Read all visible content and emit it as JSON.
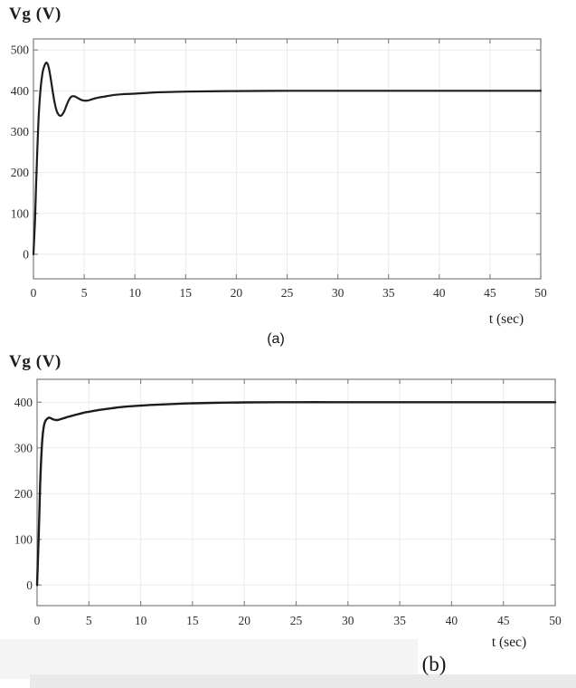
{
  "figure": {
    "background": "#ffffff",
    "artifact_bands": [
      {
        "color": "#f4f4f4"
      },
      {
        "color": "#e9e9e9"
      }
    ]
  },
  "chart_data": [
    {
      "type": "line",
      "title": "Vg (V)",
      "xlabel": "t (sec)",
      "caption": "(a)",
      "xlim": [
        0,
        50
      ],
      "ylim": [
        -60,
        527
      ],
      "xticks": [
        0,
        5,
        10,
        15,
        20,
        25,
        30,
        35,
        40,
        45,
        50
      ],
      "yticks": [
        0,
        100,
        200,
        300,
        400,
        500
      ],
      "grid": true,
      "grid_color": "#ebebeb",
      "frame_color": "#7d7d7d",
      "tick_text_color": "#2e2e2e",
      "series": [
        {
          "name": "Vg",
          "color": "#1c1c1c",
          "x": [
            0,
            0.15,
            0.3,
            0.5,
            0.7,
            0.9,
            1.1,
            1.3,
            1.5,
            1.7,
            1.9,
            2.1,
            2.3,
            2.5,
            2.7,
            2.9,
            3.1,
            3.3,
            3.5,
            3.7,
            3.9,
            4.1,
            4.4,
            4.7,
            5.0,
            5.3,
            5.6,
            6.0,
            6.5,
            7.0,
            8.0,
            9.0,
            10,
            12,
            15,
            20,
            25,
            30,
            35,
            40,
            45,
            50
          ],
          "y": [
            0,
            80,
            200,
            330,
            405,
            445,
            462,
            469,
            458,
            430,
            398,
            369,
            350,
            341,
            339,
            344,
            354,
            367,
            378,
            385,
            387,
            386,
            382,
            378,
            376,
            376,
            378,
            381,
            384,
            386,
            390,
            392,
            393,
            396,
            398,
            399.5,
            400,
            400,
            400,
            400,
            400,
            400
          ]
        }
      ]
    },
    {
      "type": "line",
      "title": "Vg (V)",
      "xlabel": "t (sec)",
      "caption": "(b)",
      "xlim": [
        0,
        50
      ],
      "ylim": [
        -45,
        450
      ],
      "xticks": [
        0,
        5,
        10,
        15,
        20,
        25,
        30,
        35,
        40,
        45,
        50
      ],
      "yticks": [
        0,
        100,
        200,
        300,
        400
      ],
      "grid": true,
      "grid_color": "#ebebeb",
      "frame_color": "#7d7d7d",
      "tick_text_color": "#2e2e2e",
      "series": [
        {
          "name": "Vg",
          "color": "#1c1c1c",
          "x": [
            0,
            0.15,
            0.3,
            0.45,
            0.6,
            0.75,
            0.9,
            1.05,
            1.2,
            1.4,
            1.6,
            1.8,
            2.0,
            2.3,
            2.6,
            3.0,
            3.5,
            4.0,
            4.5,
            5.0,
            5.5,
            6.0,
            7.0,
            8.0,
            9.0,
            10,
            11,
            12,
            13,
            14,
            15,
            17,
            20,
            25,
            30,
            35,
            40,
            45,
            50
          ],
          "y": [
            0,
            100,
            220,
            300,
            340,
            356,
            362,
            365,
            366,
            364,
            362,
            361,
            361,
            363,
            365,
            368,
            371,
            374,
            377,
            379,
            381,
            383,
            386,
            389,
            391,
            392.5,
            394,
            395,
            396,
            397,
            397.5,
            398.5,
            399.5,
            400,
            400,
            400,
            400,
            400,
            400
          ]
        }
      ]
    }
  ]
}
